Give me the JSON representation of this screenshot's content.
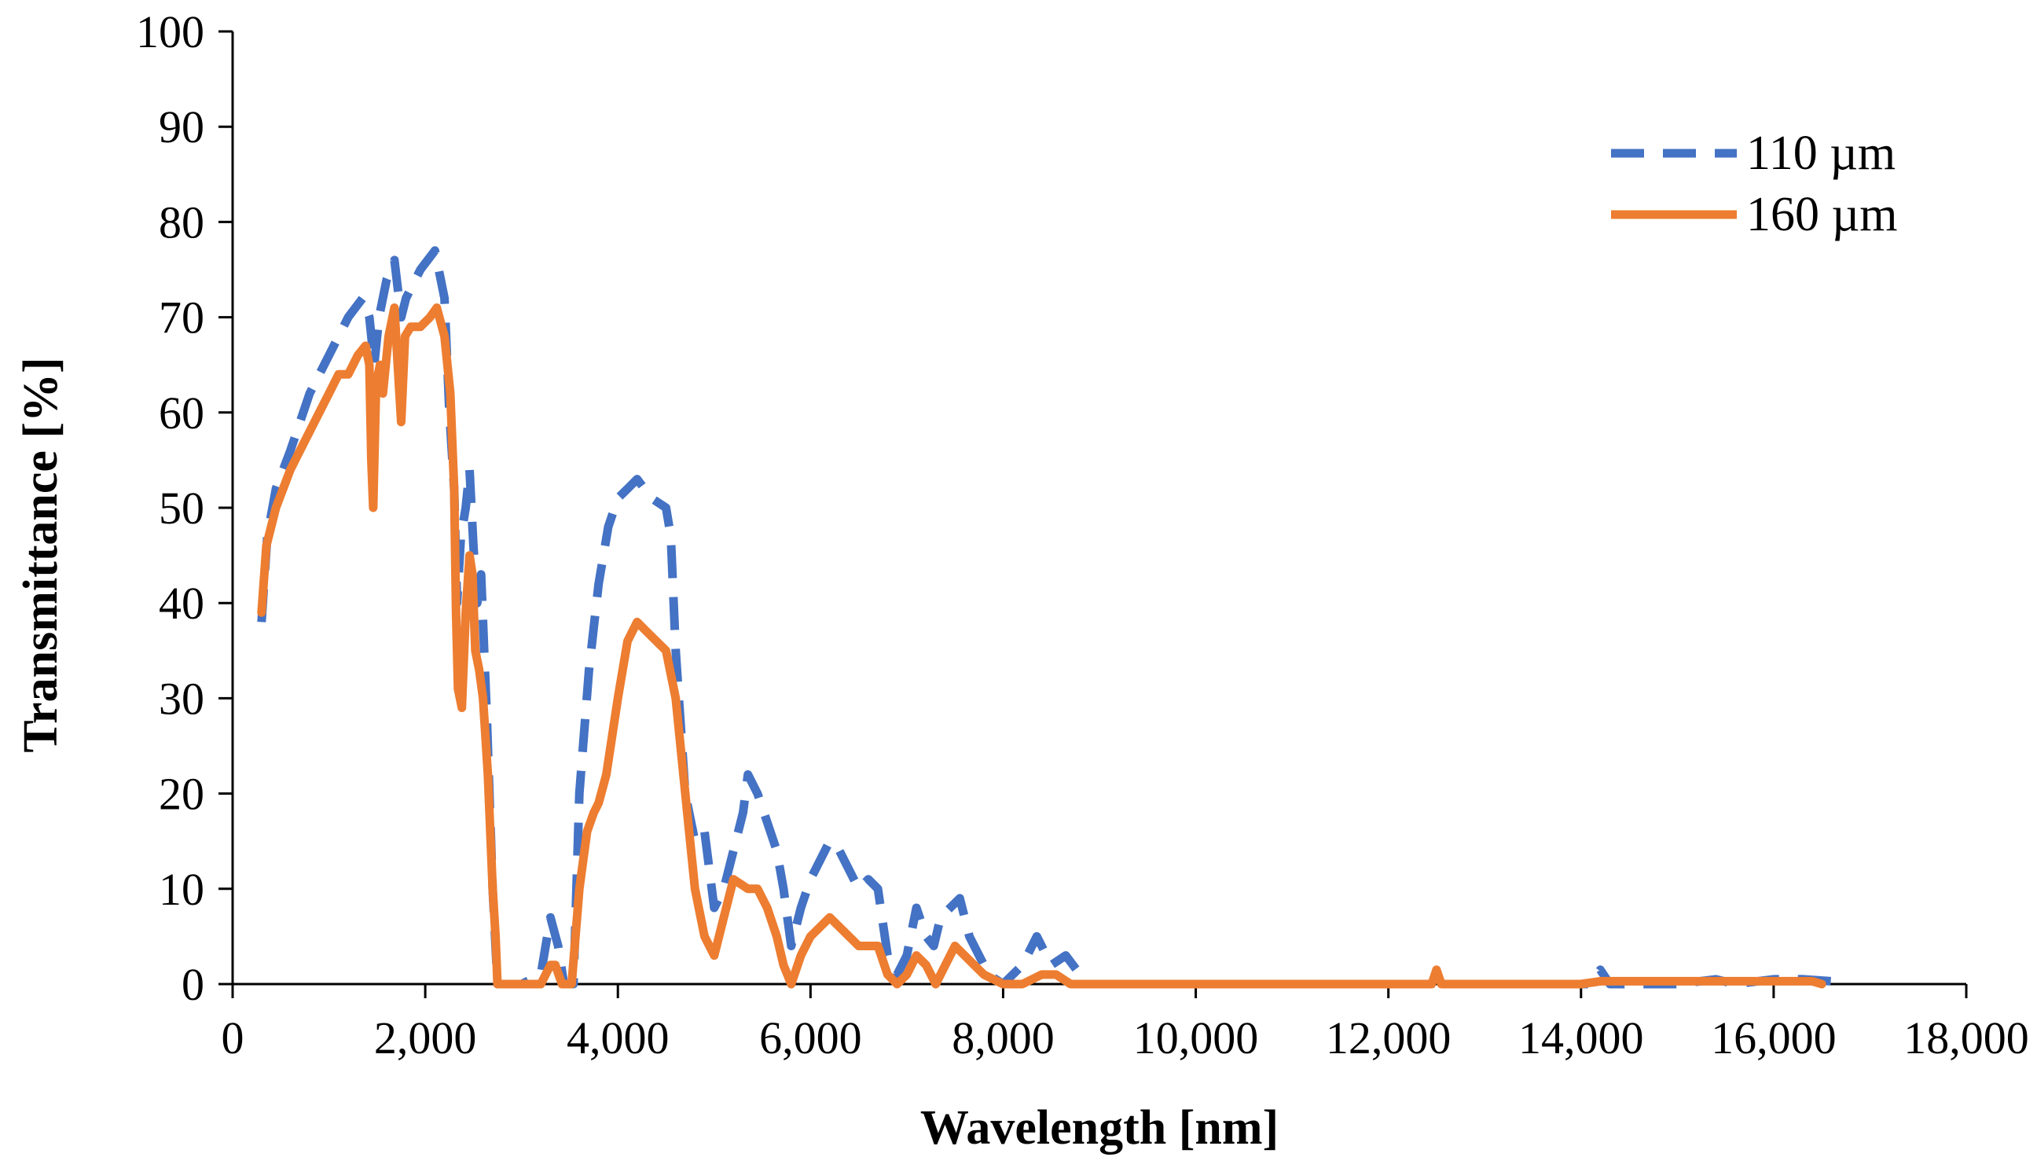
{
  "chart_data": {
    "type": "line",
    "title": "",
    "xlabel": "Wavelength [nm]",
    "ylabel": "Transmittance [%]",
    "xlim": [
      0,
      18000
    ],
    "ylim": [
      0,
      100
    ],
    "xticks": [
      "0",
      "2,000",
      "4,000",
      "6,000",
      "8,000",
      "10,000",
      "12,000",
      "14,000",
      "16,000",
      "18,000"
    ],
    "yticks": [
      "0",
      "10",
      "20",
      "30",
      "40",
      "50",
      "60",
      "70",
      "80",
      "90",
      "100"
    ],
    "grid": false,
    "legend_position": "top-right",
    "series": [
      {
        "name": "110 µm",
        "color": "#4472C4",
        "dash": true,
        "points": [
          [
            300,
            38
          ],
          [
            360,
            47
          ],
          [
            450,
            52
          ],
          [
            600,
            56
          ],
          [
            800,
            62
          ],
          [
            1000,
            66
          ],
          [
            1200,
            70
          ],
          [
            1350,
            72
          ],
          [
            1420,
            70
          ],
          [
            1470,
            65
          ],
          [
            1520,
            70
          ],
          [
            1600,
            74
          ],
          [
            1680,
            76
          ],
          [
            1750,
            70
          ],
          [
            1800,
            72
          ],
          [
            1950,
            75
          ],
          [
            2100,
            77
          ],
          [
            2160,
            74
          ],
          [
            2200,
            72
          ],
          [
            2250,
            60
          ],
          [
            2300,
            52
          ],
          [
            2330,
            40
          ],
          [
            2370,
            47
          ],
          [
            2420,
            50
          ],
          [
            2460,
            54
          ],
          [
            2500,
            46
          ],
          [
            2540,
            40
          ],
          [
            2580,
            43
          ],
          [
            2640,
            28
          ],
          [
            2700,
            10
          ],
          [
            2750,
            0
          ],
          [
            3000,
            0
          ],
          [
            3200,
            1
          ],
          [
            3300,
            7
          ],
          [
            3380,
            4
          ],
          [
            3440,
            0
          ],
          [
            3540,
            0
          ],
          [
            3600,
            20
          ],
          [
            3700,
            33
          ],
          [
            3800,
            42
          ],
          [
            3900,
            48
          ],
          [
            4000,
            51
          ],
          [
            4100,
            52
          ],
          [
            4200,
            53
          ],
          [
            4350,
            51
          ],
          [
            4500,
            50
          ],
          [
            4550,
            47
          ],
          [
            4600,
            35
          ],
          [
            4700,
            20
          ],
          [
            4800,
            15
          ],
          [
            4900,
            16
          ],
          [
            5000,
            8
          ],
          [
            5100,
            10
          ],
          [
            5200,
            14
          ],
          [
            5300,
            18
          ],
          [
            5350,
            22
          ],
          [
            5450,
            20
          ],
          [
            5550,
            17
          ],
          [
            5650,
            14
          ],
          [
            5720,
            10
          ],
          [
            5800,
            4
          ],
          [
            5900,
            8
          ],
          [
            6000,
            11
          ],
          [
            6100,
            13
          ],
          [
            6200,
            15
          ],
          [
            6300,
            14
          ],
          [
            6400,
            12
          ],
          [
            6500,
            10
          ],
          [
            6600,
            11
          ],
          [
            6700,
            10
          ],
          [
            6800,
            3
          ],
          [
            6900,
            1
          ],
          [
            7000,
            3
          ],
          [
            7100,
            8
          ],
          [
            7200,
            5
          ],
          [
            7280,
            4
          ],
          [
            7350,
            7
          ],
          [
            7450,
            8
          ],
          [
            7550,
            9
          ],
          [
            7650,
            5
          ],
          [
            7750,
            3
          ],
          [
            7850,
            1
          ],
          [
            8000,
            0
          ],
          [
            8200,
            2
          ],
          [
            8350,
            5
          ],
          [
            8500,
            2
          ],
          [
            8650,
            3
          ],
          [
            8800,
            1
          ],
          [
            8900,
            0
          ],
          [
            10000,
            0
          ],
          [
            12000,
            0
          ],
          [
            14100,
            0
          ],
          [
            14200,
            1.5
          ],
          [
            14300,
            0
          ],
          [
            15000,
            0
          ],
          [
            15400,
            0.5
          ],
          [
            15600,
            0
          ],
          [
            16000,
            0.5
          ],
          [
            16300,
            0.5
          ],
          [
            16600,
            0.3
          ],
          [
            16700,
            0
          ]
        ]
      },
      {
        "name": "160 µm",
        "color": "#ED7D31",
        "dash": false,
        "points": [
          [
            300,
            39
          ],
          [
            350,
            46
          ],
          [
            450,
            50
          ],
          [
            600,
            54
          ],
          [
            800,
            58
          ],
          [
            900,
            60
          ],
          [
            1000,
            62
          ],
          [
            1100,
            64
          ],
          [
            1200,
            64
          ],
          [
            1300,
            66
          ],
          [
            1380,
            67
          ],
          [
            1420,
            65
          ],
          [
            1440,
            55
          ],
          [
            1460,
            50
          ],
          [
            1490,
            63
          ],
          [
            1530,
            65
          ],
          [
            1560,
            62
          ],
          [
            1620,
            68
          ],
          [
            1680,
            71
          ],
          [
            1720,
            64
          ],
          [
            1750,
            59
          ],
          [
            1790,
            68
          ],
          [
            1850,
            69
          ],
          [
            1950,
            69
          ],
          [
            2050,
            70
          ],
          [
            2120,
            71
          ],
          [
            2200,
            68
          ],
          [
            2260,
            62
          ],
          [
            2300,
            52
          ],
          [
            2320,
            39
          ],
          [
            2340,
            31
          ],
          [
            2380,
            29
          ],
          [
            2420,
            39
          ],
          [
            2460,
            45
          ],
          [
            2490,
            43
          ],
          [
            2520,
            35
          ],
          [
            2560,
            33
          ],
          [
            2600,
            30
          ],
          [
            2650,
            22
          ],
          [
            2700,
            10
          ],
          [
            2730,
            5
          ],
          [
            2750,
            0
          ],
          [
            3000,
            0
          ],
          [
            3200,
            0
          ],
          [
            3300,
            2
          ],
          [
            3350,
            2
          ],
          [
            3420,
            0
          ],
          [
            3520,
            0
          ],
          [
            3600,
            10
          ],
          [
            3680,
            16
          ],
          [
            3750,
            18
          ],
          [
            3800,
            19
          ],
          [
            3880,
            22
          ],
          [
            4000,
            30
          ],
          [
            4100,
            36
          ],
          [
            4200,
            38
          ],
          [
            4300,
            37
          ],
          [
            4400,
            36
          ],
          [
            4500,
            35
          ],
          [
            4600,
            30
          ],
          [
            4700,
            20
          ],
          [
            4800,
            10
          ],
          [
            4900,
            5
          ],
          [
            5000,
            3
          ],
          [
            5100,
            7
          ],
          [
            5200,
            11
          ],
          [
            5350,
            10
          ],
          [
            5450,
            10
          ],
          [
            5550,
            8
          ],
          [
            5650,
            5
          ],
          [
            5720,
            2
          ],
          [
            5800,
            0
          ],
          [
            5900,
            3
          ],
          [
            6000,
            5
          ],
          [
            6100,
            6
          ],
          [
            6200,
            7
          ],
          [
            6300,
            6
          ],
          [
            6400,
            5
          ],
          [
            6500,
            4
          ],
          [
            6600,
            4
          ],
          [
            6700,
            4
          ],
          [
            6800,
            1
          ],
          [
            6900,
            0
          ],
          [
            7000,
            1
          ],
          [
            7100,
            3
          ],
          [
            7200,
            2
          ],
          [
            7300,
            0
          ],
          [
            7400,
            2
          ],
          [
            7500,
            4
          ],
          [
            7600,
            3
          ],
          [
            7700,
            2
          ],
          [
            7800,
            1
          ],
          [
            8000,
            0
          ],
          [
            8200,
            0
          ],
          [
            8400,
            1
          ],
          [
            8550,
            1
          ],
          [
            8700,
            0
          ],
          [
            9000,
            0
          ],
          [
            12450,
            0
          ],
          [
            12500,
            1.5
          ],
          [
            12550,
            0
          ],
          [
            14000,
            0
          ],
          [
            14200,
            0.3
          ],
          [
            16000,
            0.3
          ],
          [
            16400,
            0.3
          ],
          [
            16500,
            0
          ]
        ]
      }
    ]
  }
}
